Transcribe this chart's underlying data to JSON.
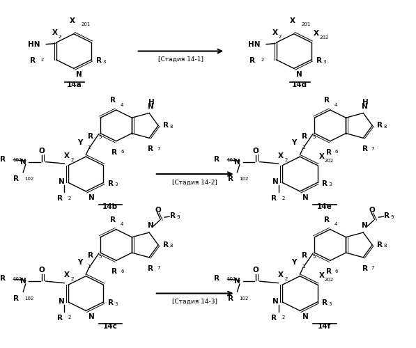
{
  "bg_color": "#ffffff",
  "fig_width": 5.97,
  "fig_height": 5.0,
  "dpi": 100,
  "arrow_label_1": "[Стадия 14-1]",
  "arrow_label_2": "[Стадия 14-2]",
  "arrow_label_3": "[Стадия 14-3]",
  "label_14a": "14a",
  "label_14b": "14b",
  "label_14c": "14c",
  "label_14d": "14d",
  "label_14e": "14e",
  "label_14f": "14f"
}
